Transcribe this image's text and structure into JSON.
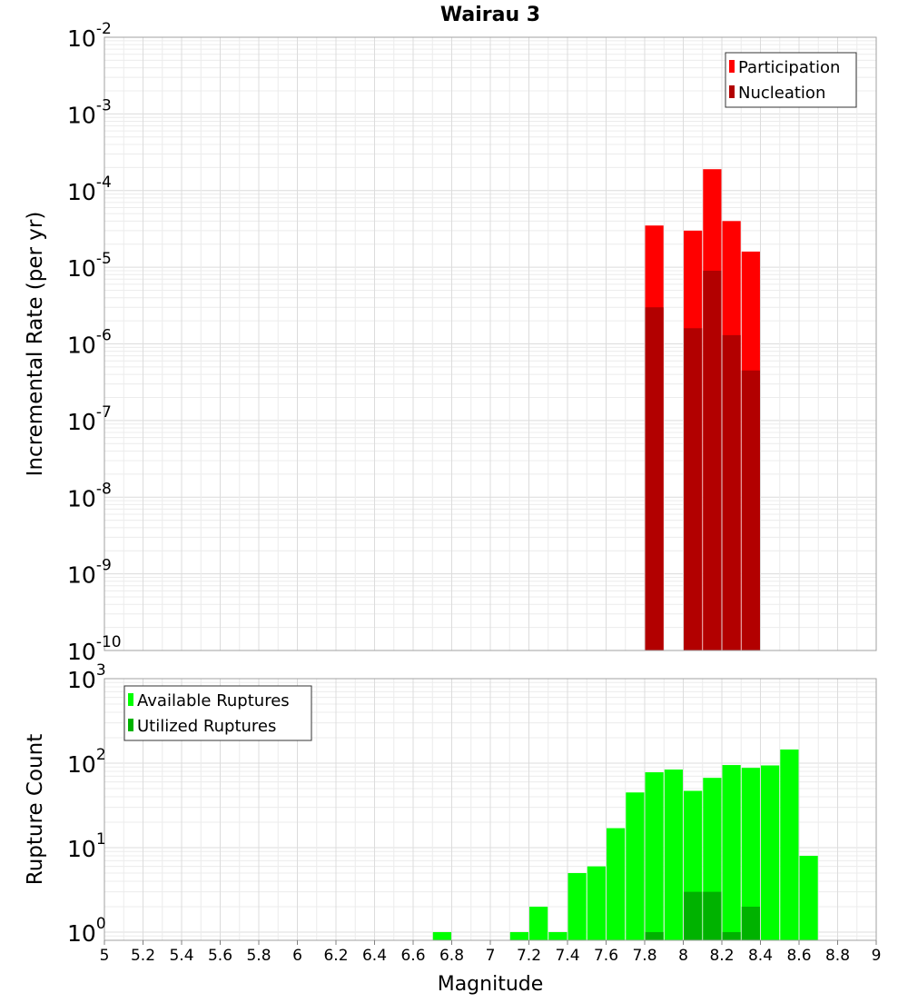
{
  "chart_data": [
    {
      "type": "bar",
      "title": "Wairau 3",
      "xlabel": "",
      "ylabel": "Incremental Rate (per yr)",
      "y_scale": "log",
      "ylim": [
        1e-10,
        0.01
      ],
      "xlim": [
        5,
        9
      ],
      "y_ticks": [
        {
          "base": "10",
          "exp": "-10",
          "value": 1e-10
        },
        {
          "base": "10",
          "exp": "-9",
          "value": 1e-09
        },
        {
          "base": "10",
          "exp": "-8",
          "value": 1e-08
        },
        {
          "base": "10",
          "exp": "-7",
          "value": 1e-07
        },
        {
          "base": "10",
          "exp": "-6",
          "value": 1e-06
        },
        {
          "base": "10",
          "exp": "-5",
          "value": 1e-05
        },
        {
          "base": "10",
          "exp": "-4",
          "value": 0.0001
        },
        {
          "base": "10",
          "exp": "-3",
          "value": 0.001
        },
        {
          "base": "10",
          "exp": "-2",
          "value": 0.01
        }
      ],
      "legend_position": "top-right",
      "series": [
        {
          "name": "Participation",
          "color": "#ff0000",
          "points": [
            {
              "x": 7.85,
              "y": 3.5e-05
            },
            {
              "x": 8.05,
              "y": 3e-05
            },
            {
              "x": 8.15,
              "y": 0.00019
            },
            {
              "x": 8.25,
              "y": 4e-05
            },
            {
              "x": 8.35,
              "y": 1.6e-05
            }
          ]
        },
        {
          "name": "Nucleation",
          "color": "#b20000",
          "points": [
            {
              "x": 7.85,
              "y": 3e-06
            },
            {
              "x": 8.05,
              "y": 1.6e-06
            },
            {
              "x": 8.15,
              "y": 9e-06
            },
            {
              "x": 8.25,
              "y": 1.3e-06
            },
            {
              "x": 8.35,
              "y": 4.5e-07
            }
          ]
        }
      ]
    },
    {
      "type": "bar",
      "title": "",
      "xlabel": "Magnitude",
      "ylabel": "Rupture Count",
      "y_scale": "log",
      "ylim": [
        0.8,
        1000
      ],
      "xlim": [
        5,
        9
      ],
      "y_ticks": [
        {
          "base": "10",
          "exp": "0",
          "value": 1
        },
        {
          "base": "10",
          "exp": "1",
          "value": 10
        },
        {
          "base": "10",
          "exp": "2",
          "value": 100
        },
        {
          "base": "10",
          "exp": "3",
          "value": 1000
        }
      ],
      "x_ticks": [
        "5",
        "5.2",
        "5.4",
        "5.6",
        "5.8",
        "6",
        "6.2",
        "6.4",
        "6.6",
        "6.8",
        "7",
        "7.2",
        "7.4",
        "7.6",
        "7.8",
        "8",
        "8.2",
        "8.4",
        "8.6",
        "8.8",
        "9"
      ],
      "legend_position": "top-left",
      "series": [
        {
          "name": "Available Ruptures",
          "color": "#00ff00",
          "points": [
            {
              "x": 6.75,
              "y": 1
            },
            {
              "x": 7.15,
              "y": 1
            },
            {
              "x": 7.25,
              "y": 2
            },
            {
              "x": 7.35,
              "y": 1
            },
            {
              "x": 7.45,
              "y": 5
            },
            {
              "x": 7.55,
              "y": 6
            },
            {
              "x": 7.65,
              "y": 17
            },
            {
              "x": 7.75,
              "y": 45
            },
            {
              "x": 7.85,
              "y": 78
            },
            {
              "x": 7.95,
              "y": 84
            },
            {
              "x": 8.05,
              "y": 47
            },
            {
              "x": 8.15,
              "y": 67
            },
            {
              "x": 8.25,
              "y": 95
            },
            {
              "x": 8.35,
              "y": 88
            },
            {
              "x": 8.45,
              "y": 94
            },
            {
              "x": 8.55,
              "y": 145
            },
            {
              "x": 8.65,
              "y": 8
            }
          ]
        },
        {
          "name": "Utilized Ruptures",
          "color": "#00b200",
          "points": [
            {
              "x": 7.85,
              "y": 1
            },
            {
              "x": 8.05,
              "y": 3
            },
            {
              "x": 8.15,
              "y": 3
            },
            {
              "x": 8.25,
              "y": 1
            },
            {
              "x": 8.35,
              "y": 2
            }
          ]
        }
      ]
    }
  ]
}
